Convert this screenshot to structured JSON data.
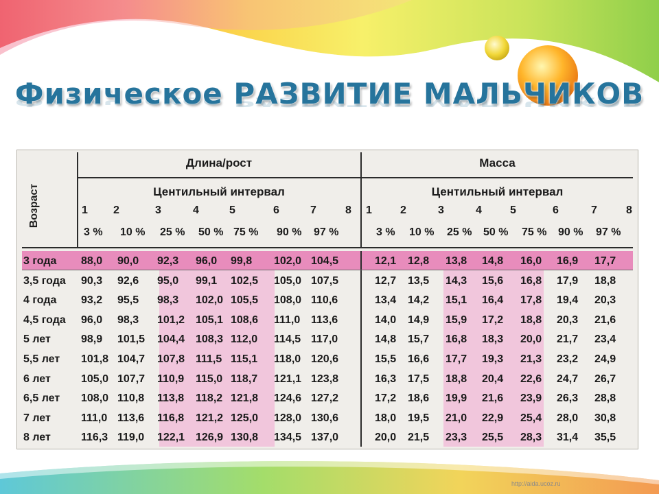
{
  "title": {
    "part1": "Физическое ",
    "part2": "РАЗВИТИЕ МАЛЬЧИКОВ"
  },
  "table": {
    "age_header": "Возраст",
    "group_length": "Длина/рост",
    "group_mass": "Масса",
    "interval_label": "Центильный интервал",
    "interval_numbers": [
      "1",
      "2",
      "3",
      "4",
      "5",
      "6",
      "7",
      "8"
    ],
    "percentiles": [
      "3 %",
      "10 %",
      "25 %",
      "50 %",
      "75 %",
      "90 %",
      "97 %"
    ],
    "rows": [
      {
        "age": "3 года",
        "length": [
          "88,0",
          "90,0",
          "92,3",
          "96,0",
          "99,8",
          "102,0",
          "104,5"
        ],
        "mass": [
          "12,1",
          "12,8",
          "13,8",
          "14,8",
          "16,0",
          "16,9",
          "17,7"
        ]
      },
      {
        "age": "3,5 года",
        "length": [
          "90,3",
          "92,6",
          "95,0",
          "99,1",
          "102,5",
          "105,0",
          "107,5"
        ],
        "mass": [
          "12,7",
          "13,5",
          "14,3",
          "15,6",
          "16,8",
          "17,9",
          "18,8"
        ]
      },
      {
        "age": "4 года",
        "length": [
          "93,2",
          "95,5",
          "98,3",
          "102,0",
          "105,5",
          "108,0",
          "110,6"
        ],
        "mass": [
          "13,4",
          "14,2",
          "15,1",
          "16,4",
          "17,8",
          "19,4",
          "20,3"
        ]
      },
      {
        "age": "4,5 года",
        "length": [
          "96,0",
          "98,3",
          "101,2",
          "105,1",
          "108,6",
          "111,0",
          "113,6"
        ],
        "mass": [
          "14,0",
          "14,9",
          "15,9",
          "17,2",
          "18,8",
          "20,3",
          "21,6"
        ]
      },
      {
        "age": "5 лет",
        "length": [
          "98,9",
          "101,5",
          "104,4",
          "108,3",
          "112,0",
          "114,5",
          "117,0"
        ],
        "mass": [
          "14,8",
          "15,7",
          "16,8",
          "18,3",
          "20,0",
          "21,7",
          "23,4"
        ]
      },
      {
        "age": "5,5 лет",
        "length": [
          "101,8",
          "104,7",
          "107,8",
          "111,5",
          "115,1",
          "118,0",
          "120,6"
        ],
        "mass": [
          "15,5",
          "16,6",
          "17,7",
          "19,3",
          "21,3",
          "23,2",
          "24,9"
        ]
      },
      {
        "age": "6 лет",
        "length": [
          "105,0",
          "107,7",
          "110,9",
          "115,0",
          "118,7",
          "121,1",
          "123,8"
        ],
        "mass": [
          "16,3",
          "17,5",
          "18,8",
          "20,4",
          "22,6",
          "24,7",
          "26,7"
        ]
      },
      {
        "age": "6,5 лет",
        "length": [
          "108,0",
          "110,8",
          "113,8",
          "118,2",
          "121,8",
          "124,6",
          "127,2"
        ],
        "mass": [
          "17,2",
          "18,6",
          "19,9",
          "21,6",
          "23,9",
          "26,3",
          "28,8"
        ]
      },
      {
        "age": "7 лет",
        "length": [
          "111,0",
          "113,6",
          "116,8",
          "121,2",
          "125,0",
          "128,0",
          "130,6"
        ],
        "mass": [
          "18,0",
          "19,5",
          "21,0",
          "22,9",
          "25,4",
          "28,0",
          "30,8"
        ]
      },
      {
        "age": "8 лет",
        "length": [
          "116,3",
          "119,0",
          "122,1",
          "126,9",
          "130,8",
          "134,5",
          "137,0"
        ],
        "mass": [
          "20,0",
          "21,5",
          "23,3",
          "25,5",
          "28,3",
          "31,4",
          "35,5"
        ]
      }
    ]
  },
  "footer_url": "http://aida.ucoz.ru",
  "colors": {
    "title": "#26749c",
    "highlight": "#f1c6dc",
    "first_row": "#e88cbc"
  }
}
